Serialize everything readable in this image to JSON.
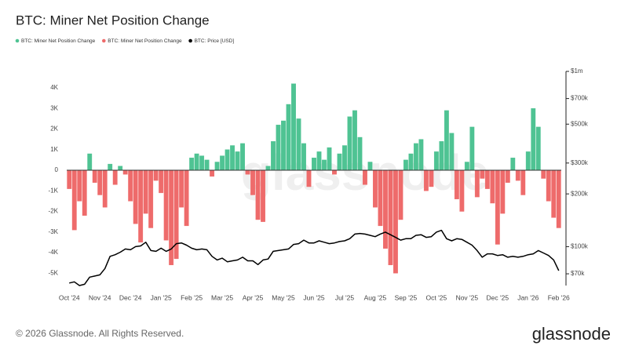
{
  "chart_data": {
    "type": "bar",
    "title": "BTC: Miner Net Position Change",
    "footer": "© 2026 Glassnode. All Rights Reserved.",
    "logo": "glassnode",
    "watermark": "glassnode",
    "categories": [
      "Oct '24",
      null,
      null,
      null,
      null,
      null,
      "Nov '24",
      null,
      null,
      null,
      null,
      null,
      "Dec '24",
      null,
      null,
      null,
      null,
      null,
      "Jan '25",
      null,
      null,
      null,
      null,
      null,
      "Feb '25",
      null,
      null,
      null,
      null,
      null,
      "Mar '25",
      null,
      null,
      null,
      null,
      null,
      "Apr '25",
      null,
      null,
      null,
      null,
      null,
      "May '25",
      null,
      null,
      null,
      null,
      null,
      "Jun '25",
      null,
      null,
      null,
      null,
      null,
      "Jul '25",
      null,
      null,
      null,
      null,
      null,
      "Aug '25",
      null,
      null,
      null,
      null,
      null,
      "Sep '25",
      null,
      null,
      null,
      null,
      null,
      "Oct '25",
      null,
      null,
      null,
      null,
      null,
      "Nov '25",
      null,
      null,
      null,
      null,
      null,
      "Dec '25",
      null,
      null,
      null,
      null,
      null,
      "Jan '26",
      null,
      null,
      null,
      null,
      null,
      "Feb '26"
    ],
    "series": [
      {
        "name": "BTC: Miner Net Position Change",
        "color": "#4fc393",
        "values": [
          null,
          null,
          null,
          null,
          800,
          null,
          null,
          null,
          300,
          null,
          200,
          null,
          null,
          null,
          null,
          null,
          null,
          null,
          null,
          null,
          null,
          null,
          null,
          null,
          600,
          800,
          700,
          500,
          null,
          400,
          700,
          1000,
          1200,
          900,
          1300,
          null,
          null,
          null,
          null,
          200,
          1400,
          2200,
          2400,
          3200,
          4200,
          2500,
          1300,
          null,
          600,
          900,
          500,
          1100,
          null,
          800,
          1200,
          2600,
          2900,
          1600,
          null,
          400,
          null,
          null,
          null,
          null,
          null,
          null,
          500,
          800,
          1300,
          1500,
          null,
          null,
          900,
          1400,
          2900,
          1800,
          null,
          null,
          400,
          2100,
          null,
          null,
          null,
          null,
          null,
          null,
          null,
          600,
          null,
          null,
          900,
          3000,
          2100,
          null,
          null,
          null,
          null
        ]
      },
      {
        "name": "BTC: Miner Net Position Change",
        "color": "#ee6b6b",
        "values": [
          -900,
          -2900,
          -1500,
          -2200,
          null,
          -600,
          -1200,
          -1800,
          null,
          -700,
          null,
          -200,
          -1500,
          -2600,
          -3500,
          -2100,
          -2800,
          -500,
          -1100,
          -3400,
          -4600,
          -4300,
          -1800,
          -2700,
          null,
          null,
          null,
          null,
          -300,
          null,
          null,
          null,
          null,
          null,
          null,
          -200,
          -1200,
          -2400,
          -2500,
          null,
          null,
          null,
          null,
          null,
          null,
          null,
          null,
          -800,
          null,
          null,
          null,
          null,
          -200,
          null,
          null,
          null,
          null,
          null,
          -700,
          null,
          -1800,
          -2700,
          -3800,
          -4600,
          -5000,
          -2400,
          null,
          null,
          null,
          null,
          -1000,
          -800,
          null,
          null,
          null,
          null,
          -1400,
          -2000,
          null,
          null,
          -1300,
          -400,
          -900,
          -1600,
          -3600,
          -2100,
          -600,
          null,
          -500,
          -1200,
          null,
          null,
          null,
          -400,
          -1500,
          -2300,
          -2800
        ]
      },
      {
        "name": "BTC: Price [USD]",
        "color": "#000000",
        "axis": "y2",
        "values": [
          62000,
          63000,
          60000,
          61000,
          67000,
          68000,
          69000,
          75000,
          88000,
          90000,
          93000,
          97000,
          96000,
          100000,
          101000,
          106000,
          95000,
          94000,
          98000,
          94000,
          97000,
          104000,
          105000,
          102000,
          98000,
          96000,
          97000,
          96000,
          88000,
          84000,
          86000,
          82000,
          83000,
          84000,
          87000,
          83000,
          83000,
          79000,
          84000,
          85000,
          94000,
          95000,
          96000,
          97000,
          103000,
          104000,
          109000,
          105000,
          105000,
          108000,
          106000,
          104000,
          105000,
          107000,
          108000,
          111000,
          118000,
          119000,
          118000,
          116000,
          114000,
          118000,
          121000,
          117000,
          113000,
          109000,
          111000,
          111000,
          116000,
          117000,
          113000,
          114000,
          121000,
          124000,
          111000,
          108000,
          111000,
          110000,
          106000,
          102000,
          95000,
          87000,
          91000,
          91000,
          89000,
          90000,
          87000,
          88000,
          87000,
          88000,
          90000,
          91000,
          95000,
          92000,
          89000,
          84000,
          73000
        ]
      }
    ],
    "ylim": [
      -5600,
      4800
    ],
    "yticks": [
      {
        "value": -5000,
        "label": "-5K"
      },
      {
        "value": -4000,
        "label": "-4K"
      },
      {
        "value": -3000,
        "label": "-3K"
      },
      {
        "value": -2000,
        "label": "-2K"
      },
      {
        "value": -1000,
        "label": "-1K"
      },
      0,
      {
        "value": 1000,
        "label": "1K"
      },
      {
        "value": 2000,
        "label": "2K"
      },
      {
        "value": 3000,
        "label": "3K"
      },
      {
        "value": 4000,
        "label": "4K"
      }
    ],
    "y2lim": [
      60000,
      1000000
    ],
    "y2scale": "log",
    "y2ticks": [
      {
        "value": 70000,
        "label": "$70k"
      },
      {
        "value": 100000,
        "label": "$100k"
      },
      {
        "value": 200000,
        "label": "$200k"
      },
      {
        "value": 300000,
        "label": "$300k"
      },
      {
        "value": 500000,
        "label": "$500k"
      },
      {
        "value": 700000,
        "label": "$700k"
      },
      {
        "value": 1000000,
        "label": "$1m"
      }
    ],
    "grid": false,
    "legend": "top-left"
  }
}
